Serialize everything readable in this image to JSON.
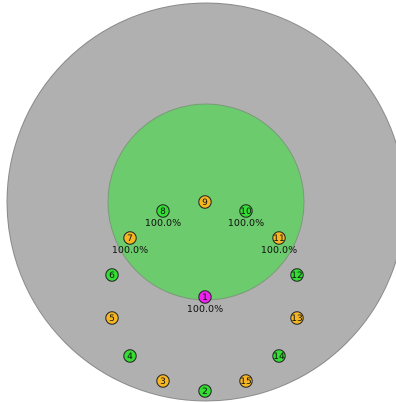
{
  "colors": {
    "background": "#ffffff",
    "outer_circle": "#b0b0b0",
    "outer_circle_stroke": "#8a8a8a",
    "inner_circle": "#6ccb6c",
    "inner_circle_stroke": "#7a9a7a",
    "node_green": "#33dd33",
    "node_orange": "#f5b623",
    "node_magenta": "#ee22ee",
    "node_stroke": "#222222"
  },
  "nodes": [
    {
      "id": "1",
      "label": "1",
      "color": "magenta",
      "percent": "100.0%"
    },
    {
      "id": "2",
      "label": "2",
      "color": "green"
    },
    {
      "id": "3",
      "label": "3",
      "color": "orange"
    },
    {
      "id": "4",
      "label": "4",
      "color": "green"
    },
    {
      "id": "5",
      "label": "5",
      "color": "orange"
    },
    {
      "id": "6",
      "label": "6",
      "color": "green"
    },
    {
      "id": "7",
      "label": "7",
      "color": "orange",
      "percent": "100.0%"
    },
    {
      "id": "8",
      "label": "8",
      "color": "green",
      "percent": "100.0%"
    },
    {
      "id": "9",
      "label": "9",
      "color": "orange"
    },
    {
      "id": "10",
      "label": "10",
      "color": "green",
      "percent": "100.0%"
    },
    {
      "id": "11",
      "label": "11",
      "color": "orange",
      "percent": "100.0%"
    },
    {
      "id": "12",
      "label": "12",
      "color": "green"
    },
    {
      "id": "13",
      "label": "13",
      "color": "orange"
    },
    {
      "id": "14",
      "label": "14",
      "color": "green"
    },
    {
      "id": "15",
      "label": "15",
      "color": "orange"
    }
  ]
}
